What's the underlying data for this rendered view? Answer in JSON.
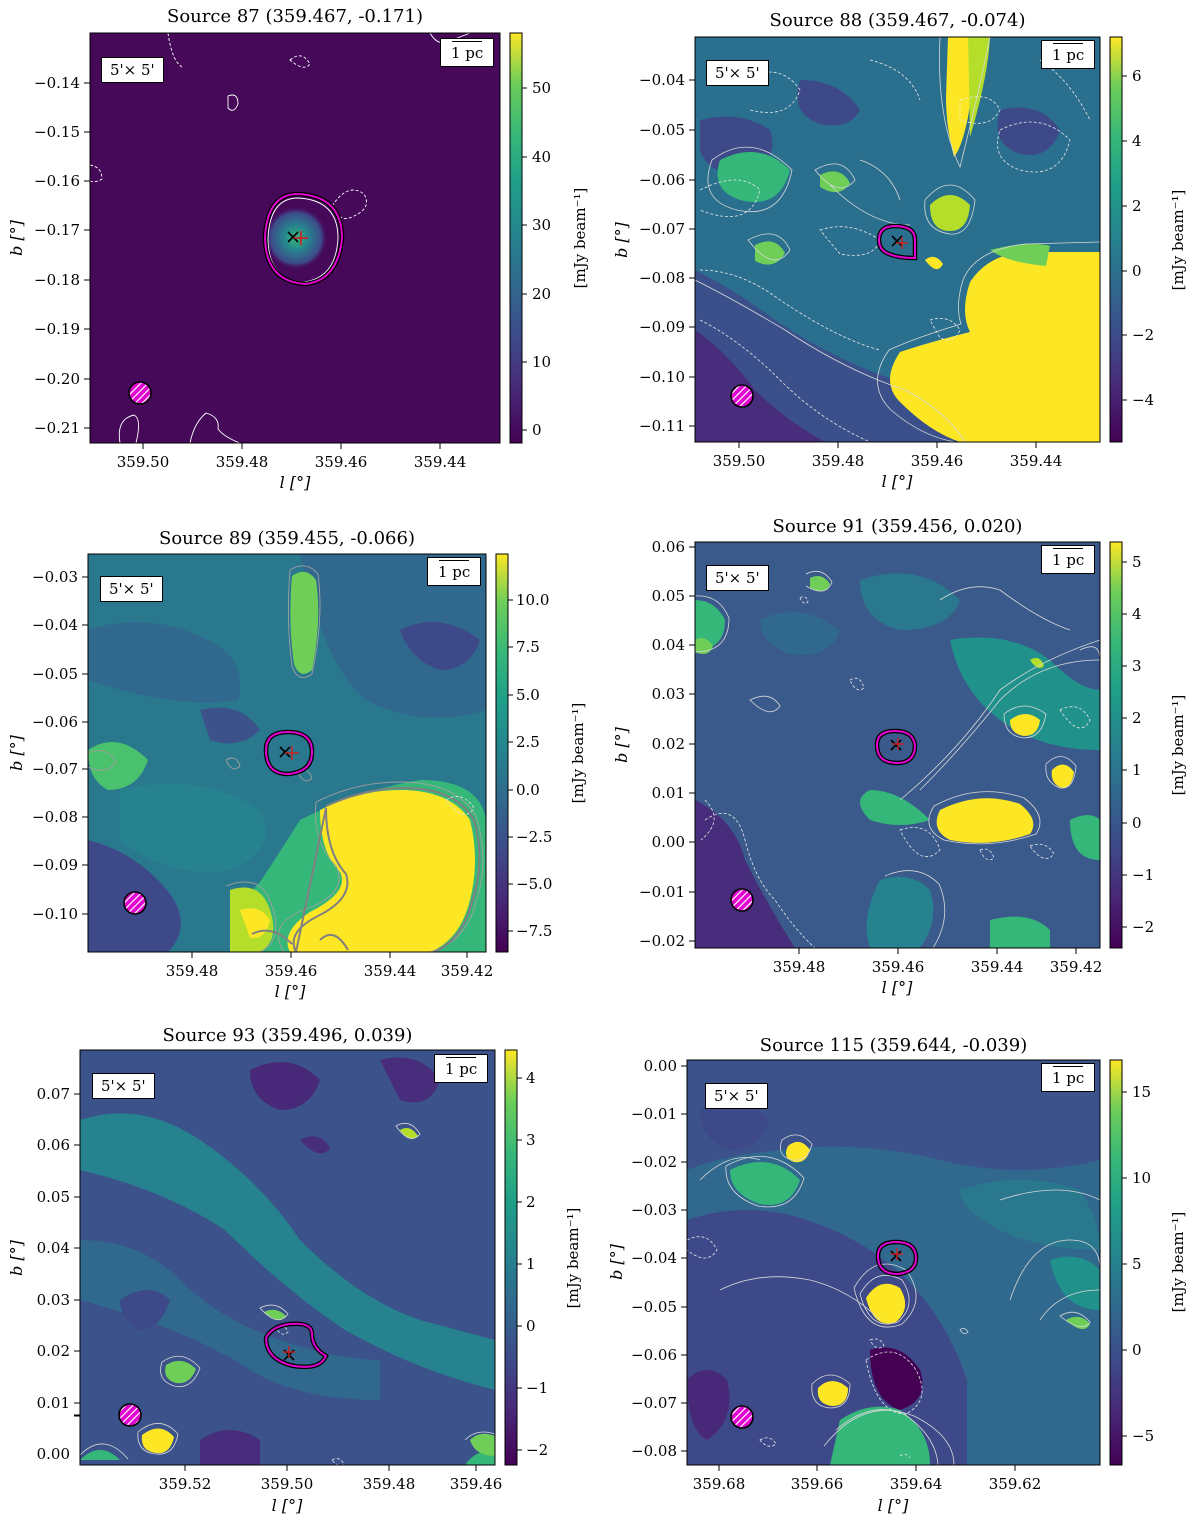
{
  "colors": {
    "accent_magenta": "#e000d0",
    "colormap": "viridis",
    "contour_white": "#ffffff",
    "contour_grey": "#a0a0a0"
  },
  "panels": [
    {
      "title": "Source 87 (359.467, -0.171)",
      "size_label": "5'× 5'",
      "scale_label": "1 pc",
      "xlabel": "l [°]",
      "ylabel": "b [°]",
      "cblabel": "[mJy beam⁻¹]",
      "xticks": [
        "359.50",
        "359.48",
        "359.46",
        "359.44"
      ],
      "yticks": [
        "−0.14",
        "−0.15",
        "−0.16",
        "−0.17",
        "−0.18",
        "−0.19",
        "−0.20",
        "−0.21"
      ],
      "cbticks": [
        "50",
        "40",
        "30",
        "20",
        "10",
        "0"
      ],
      "cb_range": [
        -2,
        57
      ]
    },
    {
      "title": "Source 88 (359.467, -0.074)",
      "size_label": "5'× 5'",
      "scale_label": "1 pc",
      "xlabel": "l [°]",
      "ylabel": "b [°]",
      "cblabel": "[mJy beam⁻¹]",
      "xticks": [
        "359.50",
        "359.48",
        "359.46",
        "359.44"
      ],
      "yticks": [
        "−0.04",
        "−0.05",
        "−0.06",
        "−0.07",
        "−0.08",
        "−0.09",
        "−0.10",
        "−0.11"
      ],
      "cbticks": [
        "6",
        "4",
        "2",
        "0",
        "−2",
        "−4"
      ],
      "cb_range": [
        -5.3,
        7.2
      ]
    },
    {
      "title": "Source 89 (359.455, -0.066)",
      "size_label": "5'× 5'",
      "scale_label": "1 pc",
      "xlabel": "l [°]",
      "ylabel": "b [°]",
      "cblabel": "[mJy beam⁻¹]",
      "xticks": [
        "359.48",
        "359.46",
        "359.44",
        "359.42"
      ],
      "yticks": [
        "−0.03",
        "−0.04",
        "−0.05",
        "−0.06",
        "−0.07",
        "−0.08",
        "−0.09",
        "−0.10"
      ],
      "cbticks": [
        "10.0",
        "7.5",
        "5.0",
        "2.5",
        "0.0",
        "−2.5",
        "−5.0",
        "−7.5"
      ],
      "cb_range": [
        -8.8,
        12.2
      ]
    },
    {
      "title": "Source 91 (359.456, 0.020)",
      "size_label": "5'× 5'",
      "scale_label": "1 pc",
      "xlabel": "l [°]",
      "ylabel": "b [°]",
      "cblabel": "[mJy beam⁻¹]",
      "xticks": [
        "359.48",
        "359.46",
        "359.44",
        "359.42"
      ],
      "yticks": [
        "0.06",
        "0.05",
        "0.04",
        "0.03",
        "0.02",
        "0.01",
        "0.00",
        "−0.01",
        "−0.02"
      ],
      "cbticks": [
        "5",
        "4",
        "3",
        "2",
        "1",
        "0",
        "−1",
        "−2"
      ],
      "cb_range": [
        -2.4,
        5.4
      ]
    },
    {
      "title": "Source 93 (359.496, 0.039)",
      "size_label": "5'× 5'",
      "scale_label": "1 pc",
      "xlabel": "l [°]",
      "ylabel": "b [°]",
      "cblabel": "[mJy beam⁻¹]",
      "xticks": [
        "359.52",
        "359.50",
        "359.48",
        "359.46"
      ],
      "yticks": [
        "0.07",
        "0.06",
        "0.05",
        "0.04",
        "0.03",
        "0.02",
        "0.01",
        "0.00"
      ],
      "cbticks": [
        "4",
        "3",
        "2",
        "1",
        "0",
        "−1",
        "−2"
      ],
      "cb_range": [
        -2.2,
        4.5
      ]
    },
    {
      "title": "Source 115 (359.644, -0.039)",
      "size_label": "5'× 5'",
      "scale_label": "1 pc",
      "xlabel": "l [°]",
      "ylabel": "b [°]",
      "cblabel": "[mJy beam⁻¹]",
      "xticks": [
        "359.68",
        "359.66",
        "359.64",
        "359.62"
      ],
      "yticks": [
        "0.00",
        "−0.01",
        "−0.02",
        "−0.03",
        "−0.04",
        "−0.05",
        "−0.06",
        "−0.07",
        "−0.08"
      ],
      "cbticks": [
        "15",
        "10",
        "5",
        "0",
        "−5"
      ],
      "cb_range": [
        -6.8,
        16.8
      ]
    }
  ]
}
